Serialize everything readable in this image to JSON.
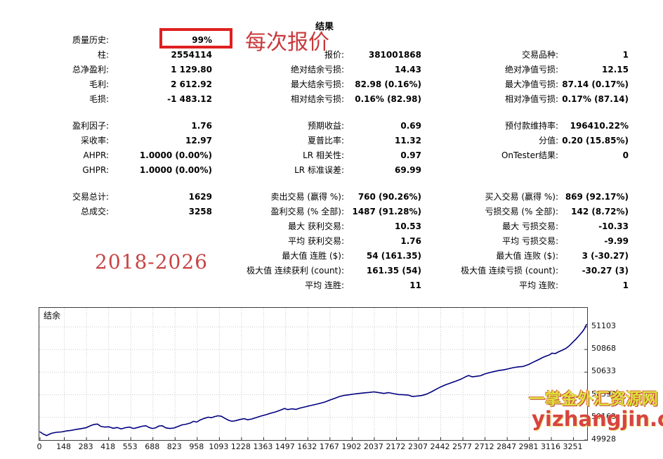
{
  "title": "结果",
  "colors": {
    "highlight_box": "#e02020",
    "annotation_red": "#c8393b",
    "watermark_yellow": "#dfe33c",
    "watermark_red": "#d84343",
    "curve_navy": "#00007f",
    "grid_gray": "#c9c9c9"
  },
  "annotations": {
    "quality_highlight": "99%",
    "tick_mode": "每次报价",
    "date_range": "2018-2026",
    "watermark_line1": "一掌金外汇资源网",
    "watermark_line2": "yizhangjin.com"
  },
  "stats": {
    "sections": [
      {
        "rows": [
          [
            {
              "label": "质量历史:",
              "value": "99%"
            },
            null,
            null
          ],
          [
            {
              "label": "柱:",
              "value": "2554114"
            },
            {
              "label": "报价:",
              "value": "381001868"
            },
            {
              "label": "交易品种:",
              "value": "1"
            }
          ],
          [
            {
              "label": "总净盈利:",
              "value": "1 129.80"
            },
            {
              "label": "绝对结余亏损:",
              "value": "14.43"
            },
            {
              "label": "绝对净值亏损:",
              "value": "12.15"
            }
          ],
          [
            {
              "label": "毛利:",
              "value": "2 612.92"
            },
            {
              "label": "最大结余亏损:",
              "value": "82.98 (0.16%)"
            },
            {
              "label": "最大净值亏损:",
              "value": "87.14 (0.17%)"
            }
          ],
          [
            {
              "label": "毛损:",
              "value": "-1 483.12"
            },
            {
              "label": "相对结余亏损:",
              "value": "0.16% (82.98)"
            },
            {
              "label": "相对净值亏损:",
              "value": "0.17% (87.14)"
            }
          ]
        ]
      },
      {
        "rows": [
          [
            {
              "label": "盈利因子:",
              "value": "1.76"
            },
            {
              "label": "预期收益:",
              "value": "0.69"
            },
            {
              "label": "预付款维持率:",
              "value": "196410.22%"
            }
          ],
          [
            {
              "label": "采收率:",
              "value": "12.97"
            },
            {
              "label": "夏普比率:",
              "value": "11.32"
            },
            {
              "label": "分值:",
              "value": "0.20 (15.85%)"
            }
          ],
          [
            {
              "label": "AHPR:",
              "value": "1.0000 (0.00%)"
            },
            {
              "label": "LR 相关性:",
              "value": "0.97"
            },
            {
              "label": "OnTester结果:",
              "value": "0"
            }
          ],
          [
            {
              "label": "GHPR:",
              "value": "1.0000 (0.00%)"
            },
            {
              "label": "LR 标准误差:",
              "value": "69.99"
            },
            null
          ]
        ]
      },
      {
        "rows": [
          [
            {
              "label": "交易总计:",
              "value": "1629"
            },
            {
              "label": "卖出交易 (赢得 %):",
              "value": "760 (90.26%)"
            },
            {
              "label": "买入交易 (赢得 %):",
              "value": "869 (92.17%)"
            }
          ],
          [
            {
              "label": "总成交:",
              "value": "3258"
            },
            {
              "label": "盈利交易 (% 全部):",
              "value": "1487 (91.28%)"
            },
            {
              "label": "亏损交易 (% 全部):",
              "value": "142 (8.72%)"
            }
          ],
          [
            null,
            {
              "label": "最大 获利交易:",
              "value": "10.53"
            },
            {
              "label": "最大 亏损交易:",
              "value": "-10.33"
            }
          ],
          [
            null,
            {
              "label": "平均 获利交易:",
              "value": "1.76"
            },
            {
              "label": "平均 亏损交易:",
              "value": "-9.99"
            }
          ],
          [
            null,
            {
              "label": "最大值 连胜 ($):",
              "value": "54 (161.35)"
            },
            {
              "label": "最大值 连败 ($):",
              "value": "3 (-30.27)"
            }
          ],
          [
            null,
            {
              "label": "极大值 连续获利 (count):",
              "value": "161.35 (54)"
            },
            {
              "label": "极大值 连续亏损 (count):",
              "value": "-30.27 (3)"
            }
          ],
          [
            null,
            {
              "label": "平均 连胜:",
              "value": "11"
            },
            {
              "label": "平均 连败:",
              "value": "1"
            }
          ]
        ]
      }
    ]
  },
  "chart_data": {
    "type": "line",
    "title": "",
    "series_label": "结余",
    "xlabel": "",
    "ylabel": "",
    "legend_position": "top-left",
    "grid": true,
    "xlim": [
      0,
      3330
    ],
    "ylim": [
      49928,
      51300
    ],
    "x_ticks": [
      0,
      148,
      283,
      418,
      553,
      688,
      823,
      958,
      1093,
      1228,
      1363,
      1497,
      1632,
      1767,
      1902,
      2037,
      2172,
      2307,
      2442,
      2577,
      2712,
      2847,
      2981,
      3116,
      3251
    ],
    "y_ticks": [
      49928,
      50163,
      50398,
      50633,
      50868,
      51103
    ],
    "line_color": "#00007f",
    "points": [
      [
        0,
        50012
      ],
      [
        20,
        49990
      ],
      [
        40,
        49975
      ],
      [
        70,
        49998
      ],
      [
        100,
        50008
      ],
      [
        130,
        50012
      ],
      [
        160,
        50022
      ],
      [
        190,
        50028
      ],
      [
        220,
        50038
      ],
      [
        250,
        50046
      ],
      [
        280,
        50055
      ],
      [
        305,
        50075
      ],
      [
        330,
        50090
      ],
      [
        350,
        50094
      ],
      [
        370,
        50070
      ],
      [
        395,
        50062
      ],
      [
        420,
        50065
      ],
      [
        445,
        50050
      ],
      [
        470,
        50058
      ],
      [
        495,
        50044
      ],
      [
        520,
        50056
      ],
      [
        545,
        50062
      ],
      [
        570,
        50048
      ],
      [
        595,
        50058
      ],
      [
        620,
        50070
      ],
      [
        645,
        50076
      ],
      [
        665,
        50058
      ],
      [
        685,
        50048
      ],
      [
        705,
        50055
      ],
      [
        725,
        50074
      ],
      [
        745,
        50076
      ],
      [
        765,
        50055
      ],
      [
        790,
        50048
      ],
      [
        815,
        50052
      ],
      [
        840,
        50068
      ],
      [
        865,
        50085
      ],
      [
        890,
        50092
      ],
      [
        915,
        50104
      ],
      [
        935,
        50122
      ],
      [
        955,
        50114
      ],
      [
        975,
        50135
      ],
      [
        1000,
        50152
      ],
      [
        1025,
        50165
      ],
      [
        1045,
        50160
      ],
      [
        1065,
        50172
      ],
      [
        1085,
        50180
      ],
      [
        1105,
        50175
      ],
      [
        1125,
        50155
      ],
      [
        1150,
        50132
      ],
      [
        1170,
        50122
      ],
      [
        1195,
        50130
      ],
      [
        1220,
        50142
      ],
      [
        1245,
        50150
      ],
      [
        1265,
        50138
      ],
      [
        1290,
        50146
      ],
      [
        1315,
        50160
      ],
      [
        1345,
        50176
      ],
      [
        1375,
        50190
      ],
      [
        1405,
        50206
      ],
      [
        1435,
        50220
      ],
      [
        1465,
        50238
      ],
      [
        1490,
        50256
      ],
      [
        1510,
        50244
      ],
      [
        1535,
        50252
      ],
      [
        1560,
        50246
      ],
      [
        1585,
        50260
      ],
      [
        1615,
        50272
      ],
      [
        1645,
        50285
      ],
      [
        1675,
        50296
      ],
      [
        1705,
        50308
      ],
      [
        1735,
        50322
      ],
      [
        1765,
        50342
      ],
      [
        1795,
        50360
      ],
      [
        1825,
        50380
      ],
      [
        1855,
        50392
      ],
      [
        1885,
        50398
      ],
      [
        1915,
        50406
      ],
      [
        1945,
        50412
      ],
      [
        1975,
        50418
      ],
      [
        2005,
        50422
      ],
      [
        2035,
        50428
      ],
      [
        2065,
        50420
      ],
      [
        2095,
        50412
      ],
      [
        2125,
        50420
      ],
      [
        2155,
        50410
      ],
      [
        2185,
        50400
      ],
      [
        2215,
        50398
      ],
      [
        2245,
        50394
      ],
      [
        2270,
        50380
      ],
      [
        2295,
        50384
      ],
      [
        2325,
        50390
      ],
      [
        2355,
        50404
      ],
      [
        2385,
        50428
      ],
      [
        2415,
        50456
      ],
      [
        2445,
        50482
      ],
      [
        2475,
        50504
      ],
      [
        2505,
        50522
      ],
      [
        2535,
        50540
      ],
      [
        2565,
        50560
      ],
      [
        2595,
        50586
      ],
      [
        2612,
        50598
      ],
      [
        2635,
        50584
      ],
      [
        2660,
        50590
      ],
      [
        2685,
        50596
      ],
      [
        2710,
        50614
      ],
      [
        2735,
        50626
      ],
      [
        2765,
        50638
      ],
      [
        2795,
        50650
      ],
      [
        2825,
        50656
      ],
      [
        2855,
        50668
      ],
      [
        2885,
        50680
      ],
      [
        2915,
        50688
      ],
      [
        2945,
        50692
      ],
      [
        2975,
        50710
      ],
      [
        3005,
        50736
      ],
      [
        3035,
        50760
      ],
      [
        3065,
        50786
      ],
      [
        3085,
        50800
      ],
      [
        3105,
        50812
      ],
      [
        3120,
        50830
      ],
      [
        3140,
        50826
      ],
      [
        3160,
        50844
      ],
      [
        3185,
        50862
      ],
      [
        3205,
        50880
      ],
      [
        3225,
        50906
      ],
      [
        3245,
        50940
      ],
      [
        3265,
        50974
      ],
      [
        3285,
        51012
      ],
      [
        3305,
        51052
      ],
      [
        3320,
        51090
      ],
      [
        3330,
        51128
      ]
    ]
  }
}
